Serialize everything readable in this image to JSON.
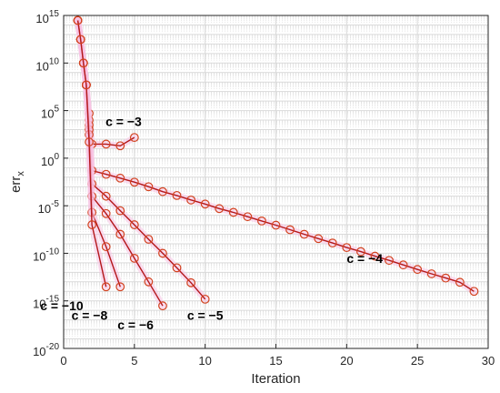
{
  "chart_data": {
    "type": "line",
    "title": "",
    "xlabel": "Iteration",
    "ylabel": "err",
    "ylabel_sub": "x",
    "x_range": [
      0,
      30
    ],
    "y_scale": "log",
    "y_range": [
      1e-20,
      1000000000000000.0
    ],
    "x_ticks": [
      "0",
      "5",
      "10",
      "15",
      "20",
      "25",
      "30"
    ],
    "y_ticks": [
      {
        "base": "10",
        "exp": "15"
      },
      {
        "base": "10",
        "exp": "10"
      },
      {
        "base": "10",
        "exp": "5"
      },
      {
        "base": "10",
        "exp": "0"
      },
      {
        "base": "10",
        "exp": "-5"
      },
      {
        "base": "10",
        "exp": "-10"
      },
      {
        "base": "10",
        "exp": "-15"
      },
      {
        "base": "10",
        "exp": "-20"
      }
    ],
    "grid": true,
    "colors": {
      "line": "#b4171b",
      "marker": "#d2421e",
      "halo": "#f7c2e4",
      "grid": "#d9d9d9",
      "axis": "#262626"
    },
    "series": [
      {
        "annotation": "c = −3",
        "x": [
          1,
          1.2,
          1.4,
          1.6,
          1.8,
          2,
          3,
          4,
          5
        ],
        "y": [
          300000000000000.0,
          3000000000000.0,
          10000000000.0,
          50000000.0,
          50000.0,
          30,
          30,
          20,
          150
        ]
      },
      {
        "annotation": "c = −4",
        "x": [
          1,
          1.2,
          1.4,
          1.6,
          1.8,
          2,
          3,
          4,
          5,
          6,
          7,
          8,
          9,
          10,
          11,
          12,
          13,
          14,
          15,
          16,
          17,
          18,
          19,
          20,
          21,
          22,
          23,
          24,
          25,
          26,
          27,
          28,
          29
        ],
        "y": [
          300000000000000.0,
          3000000000000.0,
          10000000000.0,
          50000000.0,
          10000.0,
          0.05,
          0.02,
          0.008,
          0.003,
          0.001,
          0.0003,
          0.00012,
          4e-05,
          1.5e-05,
          5e-06,
          2e-06,
          7e-07,
          2.5e-07,
          9e-08,
          3e-08,
          1e-08,
          3.5e-09,
          1.2e-09,
          4e-10,
          1.5e-10,
          5e-11,
          1.8e-11,
          6e-12,
          2e-12,
          7e-13,
          2.5e-13,
          9e-14,
          1e-14
        ]
      },
      {
        "annotation": "c = −5",
        "x": [
          1,
          1.2,
          1.4,
          1.6,
          1.8,
          2,
          3,
          4,
          5,
          6,
          7,
          8,
          9,
          10
        ],
        "y": [
          300000000000000.0,
          3000000000000.0,
          10000000000.0,
          50000000.0,
          3000.0,
          0.002,
          0.0001,
          3e-06,
          1e-07,
          3e-09,
          1e-10,
          3e-12,
          8e-14,
          1.5e-15
        ]
      },
      {
        "annotation": "c = −6",
        "x": [
          1,
          1.2,
          1.4,
          1.6,
          1.8,
          2,
          3,
          4,
          5,
          6,
          7
        ],
        "y": [
          300000000000000.0,
          3000000000000.0,
          10000000000.0,
          50000000.0,
          1000.0,
          0.0001,
          1.5e-06,
          1e-08,
          3e-11,
          1e-13,
          3e-16
        ]
      },
      {
        "annotation": "c = −8",
        "x": [
          1,
          1.2,
          1.4,
          1.6,
          1.8,
          2,
          3,
          4
        ],
        "y": [
          300000000000000.0,
          3000000000000.0,
          10000000000.0,
          50000000.0,
          300,
          2e-06,
          5e-10,
          3e-14
        ]
      },
      {
        "annotation": "c = −10",
        "x": [
          1,
          1.2,
          1.4,
          1.6,
          1.8,
          2,
          3
        ],
        "y": [
          300000000000000.0,
          3000000000000.0,
          10000000000.0,
          50000000.0,
          50,
          1e-07,
          3e-14
        ]
      }
    ],
    "annotations": [
      {
        "text": "c = −3",
        "x": 5,
        "y": 1000.0
      },
      {
        "text": "c = −4",
        "x": 20,
        "y": 1e-11
      },
      {
        "text": "c = −5",
        "x": 10,
        "y": 1e-17
      },
      {
        "text": "c = −6",
        "x": 7,
        "y": 1e-18
      },
      {
        "text": "c = −8",
        "x": 4,
        "y": 1e-17
      },
      {
        "text": "c = −10",
        "x": 3,
        "y": 1e-16
      }
    ]
  }
}
